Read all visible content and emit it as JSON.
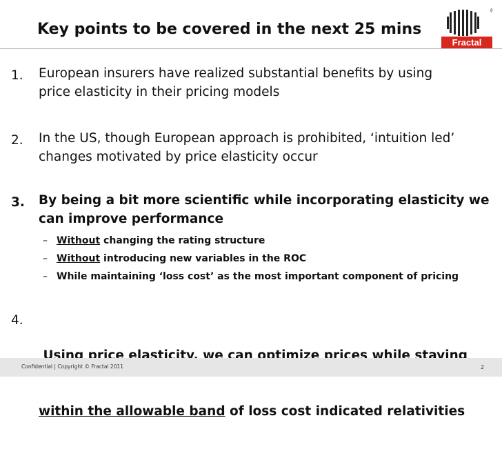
{
  "slide": {
    "title": "Key points to be covered in the next 25 mins",
    "logo": {
      "name": "Fractal",
      "mark": "®",
      "color": "#d7271f"
    },
    "points": [
      {
        "number": "1.",
        "lines": [
          "European insurers have realized substantial benefits by using",
          "price elasticity in their pricing models"
        ]
      },
      {
        "number": "2.",
        "lines": [
          "In the US, though European approach is prohibited, ‘intuition led’",
          "changes motivated by price elasticity occur"
        ]
      },
      {
        "number": "3.",
        "lines": [
          "By being a bit more scientific while incorporating elasticity  we",
          "can improve performance"
        ],
        "subpoints": [
          {
            "dash": "–",
            "underlined": "Without",
            "rest": " changing the rating structure"
          },
          {
            "dash": "–",
            "underlined": "Without",
            "rest": " introducing new variables in the ROC"
          },
          {
            "dash": "–",
            "underlined": "",
            "rest": "While maintaining  ‘loss cost’ as the most important component of pricing"
          }
        ]
      },
      {
        "number": "4.",
        "line1": " Using price elasticity, we can optimize prices while staying",
        "line2_underlined": "within the allowable band",
        "line2_rest": " of loss cost indicated relativities"
      }
    ],
    "footer": {
      "text": "Confidential | Copyright © Fractal 2011",
      "page": "2"
    }
  }
}
